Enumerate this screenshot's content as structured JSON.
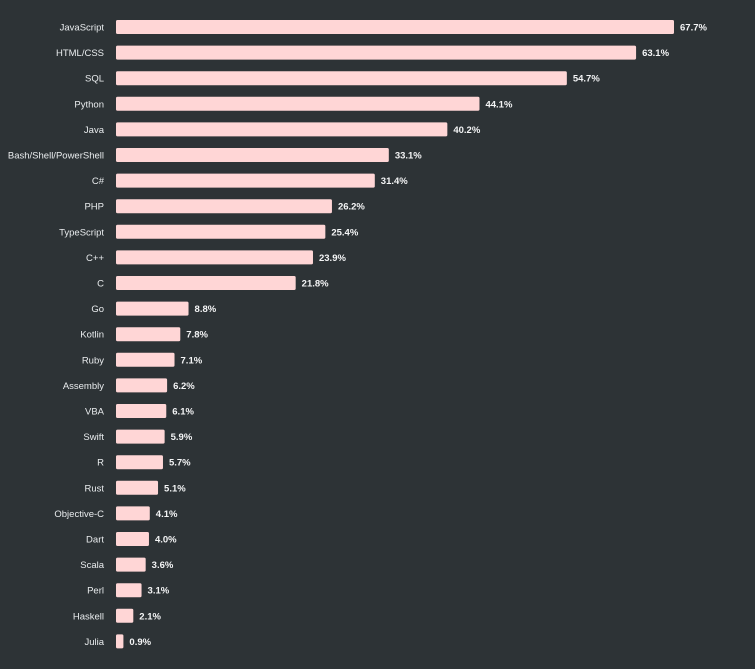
{
  "colors": {
    "background": "#2d3336",
    "bar": "#ffd6d6",
    "text": "#e9ecee"
  },
  "chart_data": {
    "type": "bar",
    "orientation": "horizontal",
    "categories": [
      "JavaScript",
      "HTML/CSS",
      "SQL",
      "Python",
      "Java",
      "Bash/Shell/PowerShell",
      "C#",
      "PHP",
      "TypeScript",
      "C++",
      "C",
      "Go",
      "Kotlin",
      "Ruby",
      "Assembly",
      "VBA",
      "Swift",
      "R",
      "Rust",
      "Objective-C",
      "Dart",
      "Scala",
      "Perl",
      "Haskell",
      "Julia"
    ],
    "values": [
      67.7,
      63.1,
      54.7,
      44.1,
      40.2,
      33.1,
      31.4,
      26.2,
      25.4,
      23.9,
      21.8,
      8.8,
      7.8,
      7.1,
      6.2,
      6.1,
      5.9,
      5.7,
      5.1,
      4.1,
      4.0,
      3.6,
      3.1,
      2.1,
      0.9
    ],
    "value_labels": [
      "67.7%",
      "63.1%",
      "54.7%",
      "44.1%",
      "40.2%",
      "33.1%",
      "31.4%",
      "26.2%",
      "25.4%",
      "23.9%",
      "21.8%",
      "8.8%",
      "7.8%",
      "7.1%",
      "6.2%",
      "6.1%",
      "5.9%",
      "5.7%",
      "5.1%",
      "4.1%",
      "4.0%",
      "3.6%",
      "3.1%",
      "2.1%",
      "0.9%"
    ],
    "unit": "%",
    "xlim": [
      0,
      67.7
    ],
    "grid": false,
    "legend": "none"
  }
}
